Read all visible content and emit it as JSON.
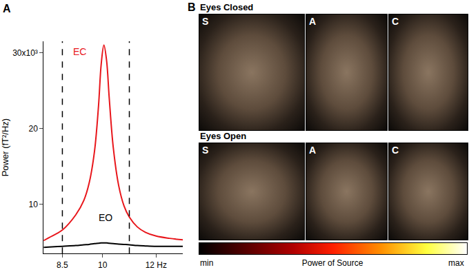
{
  "chart_data": {
    "type": "line",
    "panel_label": "A",
    "y_label": "Power (fT²/Hz)",
    "x": [
      7.8,
      8.0,
      8.5,
      9.0,
      9.3,
      9.5,
      9.7,
      9.85,
      9.95,
      10.05,
      10.15,
      10.25,
      10.4,
      10.6,
      10.8,
      11.0,
      11.3,
      11.6,
      12.0,
      12.5,
      13.0
    ],
    "series": [
      {
        "name": "EC",
        "color": "#e8161b",
        "values": [
          5.2,
          5.6,
          6.6,
          8.6,
          10.5,
          12.8,
          17,
          23,
          28.5,
          31,
          29,
          24,
          17.5,
          12.5,
          9.8,
          8.3,
          7.0,
          6.3,
          5.8,
          5.5,
          5.3
        ]
      },
      {
        "name": "EO",
        "color": "#000000",
        "values": [
          4.3,
          4.35,
          4.45,
          4.55,
          4.65,
          4.7,
          4.8,
          4.85,
          4.9,
          4.9,
          4.9,
          4.85,
          4.8,
          4.75,
          4.7,
          4.65,
          4.55,
          4.5,
          4.45,
          4.45,
          4.45
        ]
      }
    ],
    "band": [
      8.5,
      11
    ],
    "xlim": [
      7.8,
      13
    ],
    "xticks": [
      8.5,
      10,
      {
        "value": 12,
        "label": "12 Hz"
      }
    ],
    "ylim": [
      3.5,
      31.5
    ],
    "yticks": [
      10,
      20,
      {
        "value": 30,
        "label": "30x10³"
      }
    ],
    "grid": false
  },
  "panel_b": {
    "label": "B",
    "rows": [
      {
        "title": "Eyes Closed",
        "views": [
          "S",
          "A",
          "C"
        ]
      },
      {
        "title": "Eyes Open",
        "views": [
          "S",
          "A",
          "C"
        ]
      }
    ],
    "colorbar": {
      "min_label": "min",
      "title": "Power of Source",
      "max_label": "max"
    }
  }
}
